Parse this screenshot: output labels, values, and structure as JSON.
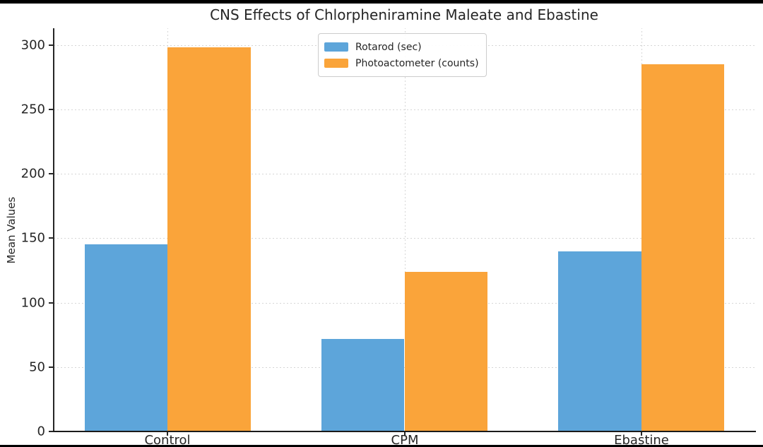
{
  "chart_data": {
    "type": "bar",
    "title": "CNS Effects of Chlorpheniramine Maleate and Ebastine",
    "xlabel": "",
    "ylabel": "Mean Values",
    "categories": [
      "Control",
      "CPM",
      "Ebastine"
    ],
    "series": [
      {
        "name": "Rotarod (sec)",
        "color": "#5DA5DA",
        "values": [
          145,
          72,
          140
        ]
      },
      {
        "name": "Photoactometer (counts)",
        "color": "#FAA43A",
        "values": [
          298,
          124,
          285
        ]
      }
    ],
    "yticks": [
      0,
      50,
      100,
      150,
      200,
      250,
      300
    ],
    "ylim": [
      0,
      313
    ],
    "grid": true,
    "grid_style": "dashed",
    "legend_position": "upper center",
    "background_color": "#ffffff",
    "text_color": "#262626"
  }
}
